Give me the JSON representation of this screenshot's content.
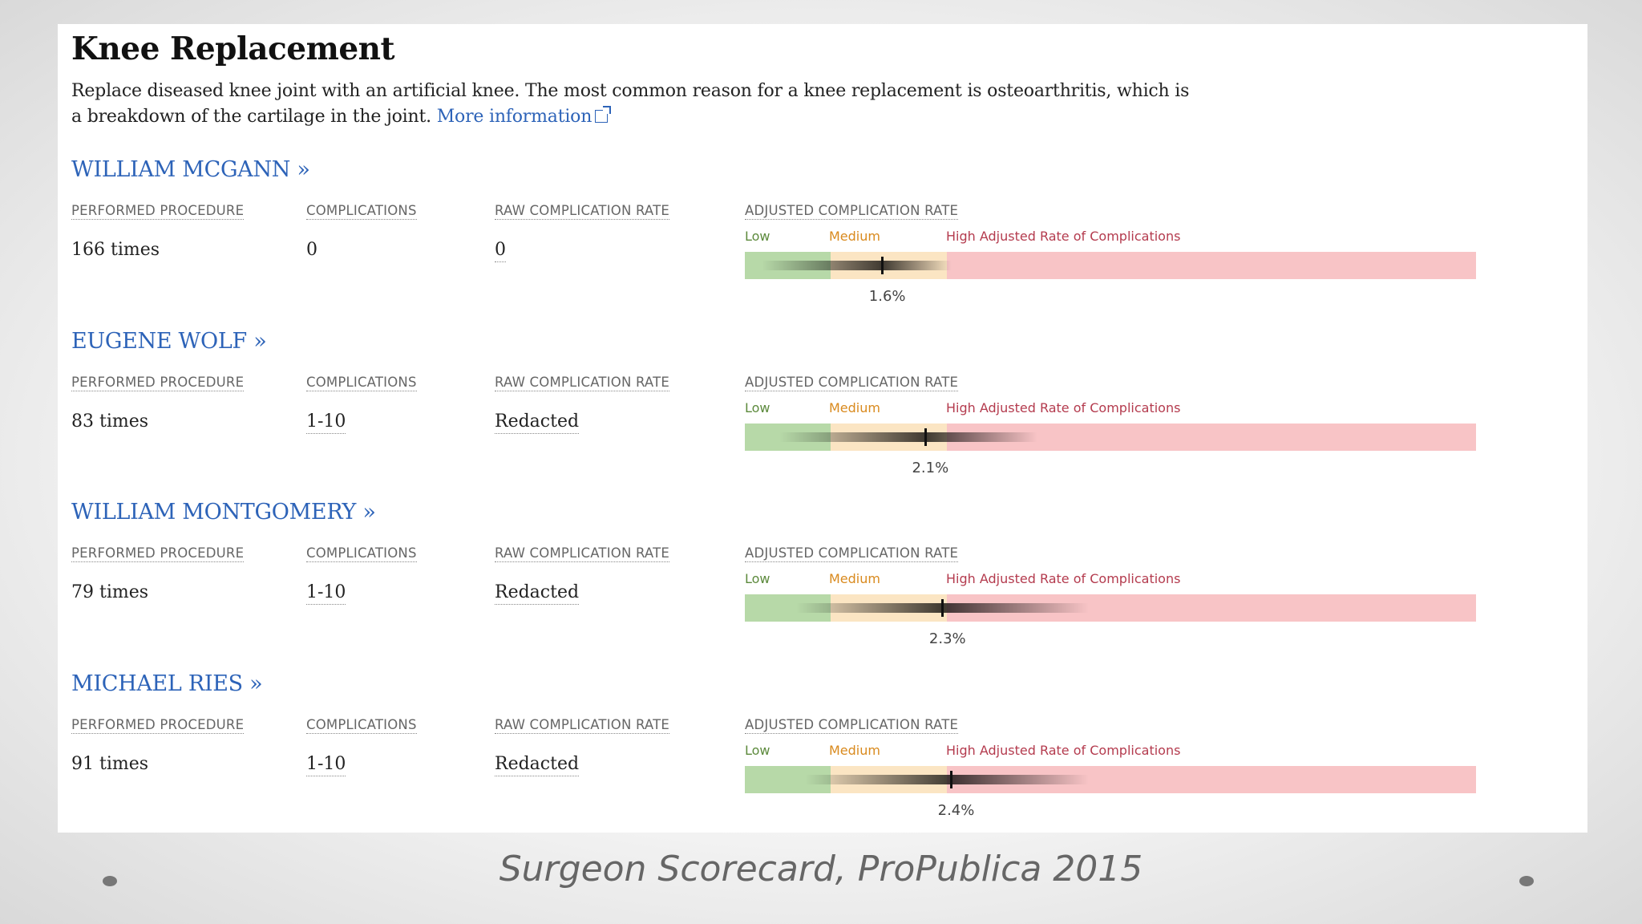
{
  "page": {
    "title": "Knee Replacement",
    "description": "Replace diseased knee joint with an artificial knee. The most common reason for a knee replacement is osteoarthritis, which is a breakdown of the cartilage in the joint.",
    "more_info_link": "More information"
  },
  "columns": {
    "performed": "PERFORMED PROCEDURE",
    "complications": "COMPLICATIONS",
    "raw_rate": "RAW COMPLICATION RATE",
    "adjusted_rate": "ADJUSTED COMPLICATION RATE"
  },
  "legend": {
    "low": "Low",
    "medium": "Medium",
    "high": "High Adjusted Rate of Complications"
  },
  "scale": {
    "min_pct": 0,
    "max_pct": 8.5,
    "medium_start_pct": 1.0,
    "high_start_pct": 2.35
  },
  "colors": {
    "low": "#b7d9a8",
    "medium": "#fbe5c3",
    "high": "#f8c4c6",
    "link": "#2d63b8"
  },
  "surgeons": [
    {
      "name": "WILLIAM MCGANN »",
      "performed": "166 times",
      "complications": "0",
      "raw_rate": "0",
      "adjusted_rate_label": "1.6%",
      "adjusted_rate": 1.6,
      "ci_low": 0.2,
      "ci_high": 2.4
    },
    {
      "name": "EUGENE WOLF »",
      "performed": "83 times",
      "complications": "1-10",
      "raw_rate": "Redacted",
      "adjusted_rate_label": "2.1%",
      "adjusted_rate": 2.1,
      "ci_low": 0.4,
      "ci_high": 3.4
    },
    {
      "name": "WILLIAM MONTGOMERY »",
      "performed": "79 times",
      "complications": "1-10",
      "raw_rate": "Redacted",
      "adjusted_rate_label": "2.3%",
      "adjusted_rate": 2.3,
      "ci_low": 0.6,
      "ci_high": 4.0
    },
    {
      "name": "MICHAEL RIES »",
      "performed": "91 times",
      "complications": "1-10",
      "raw_rate": "Redacted",
      "adjusted_rate_label": "2.4%",
      "adjusted_rate": 2.4,
      "ci_low": 0.7,
      "ci_high": 4.0
    }
  ],
  "caption": "Surgeon Scorecard, ProPublica 2015"
}
